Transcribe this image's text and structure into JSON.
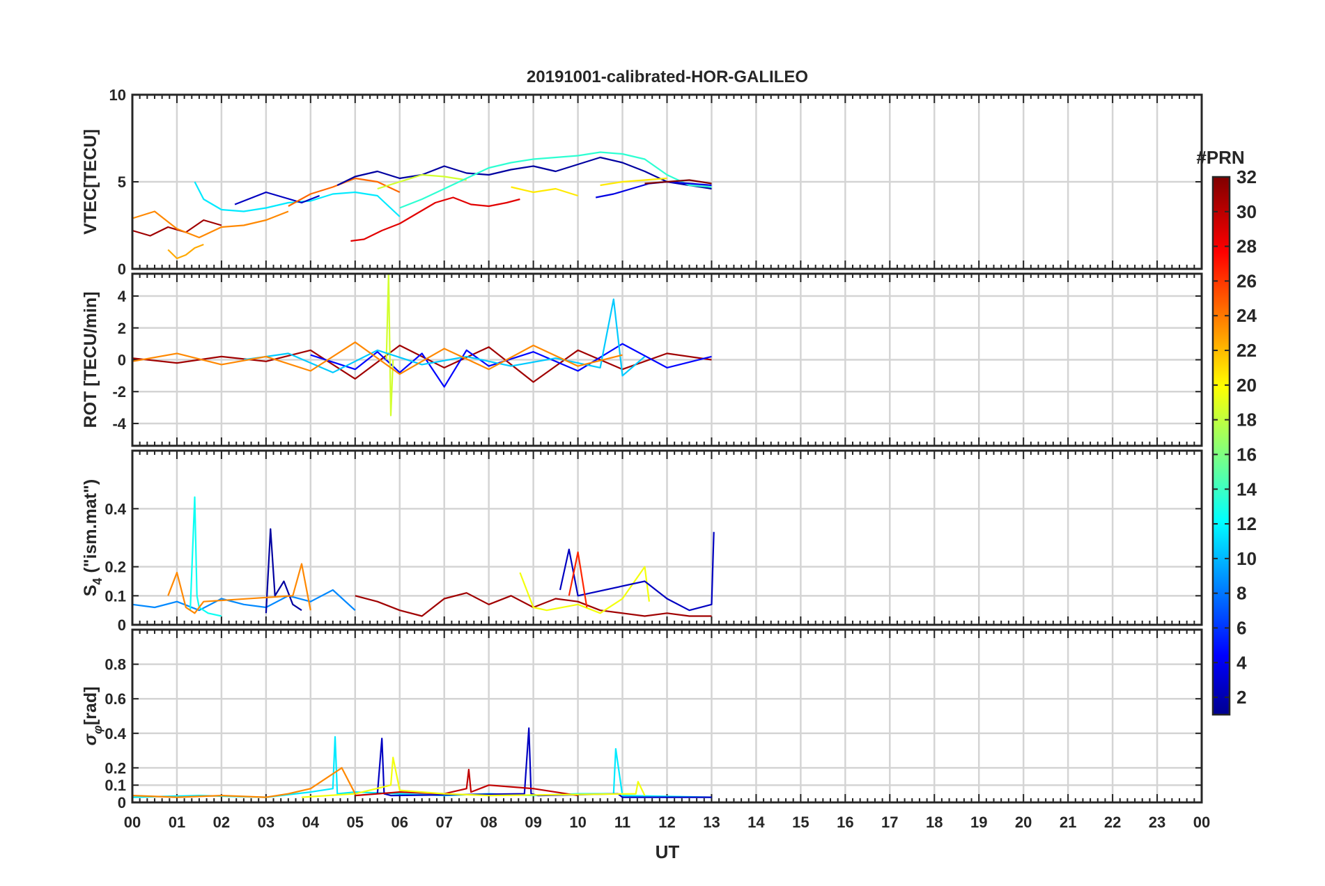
{
  "chart_data": {
    "type": "line",
    "title": "20191001-calibrated-HOR-GALILEO",
    "xlabel": "UT",
    "xlim": [
      0,
      24
    ],
    "x_tick_labels": [
      "00",
      "01",
      "02",
      "03",
      "04",
      "05",
      "06",
      "07",
      "08",
      "09",
      "10",
      "11",
      "12",
      "13",
      "14",
      "15",
      "16",
      "17",
      "18",
      "19",
      "20",
      "21",
      "22",
      "23",
      "00"
    ],
    "data_end_ut": 13.1,
    "colorbar": {
      "label": "#PRN",
      "range": [
        1,
        32
      ],
      "tick_labels": [
        "2",
        "4",
        "6",
        "8",
        "10",
        "12",
        "14",
        "16",
        "18",
        "20",
        "22",
        "24",
        "26",
        "28",
        "30",
        "32"
      ],
      "colormap": "jet",
      "stops": [
        "#00008f",
        "#0000ff",
        "#00ffff",
        "#ffff00",
        "#ff0000",
        "#800000"
      ]
    },
    "panels": [
      {
        "id": "vtec",
        "ylabel": "VTEC[TECU]",
        "ylim": [
          0,
          10
        ],
        "y_ticks": [
          0,
          5,
          10
        ],
        "y_tick_labels": [
          "0",
          "5",
          "10"
        ],
        "series": [
          {
            "prn": 31,
            "label": "PRN 31",
            "x": [
              0.0,
              0.4,
              0.8,
              1.2,
              1.6,
              2.0
            ],
            "y": [
              2.2,
              1.9,
              2.4,
              2.1,
              2.8,
              2.5
            ]
          },
          {
            "prn": 24,
            "label": "PRN 24",
            "x": [
              0.0,
              0.5,
              1.0,
              1.5,
              2.0,
              2.5,
              3.0,
              3.5
            ],
            "y": [
              2.9,
              3.3,
              2.3,
              1.8,
              2.4,
              2.5,
              2.8,
              3.3
            ]
          },
          {
            "prn": 23,
            "label": "PRN 23",
            "x": [
              0.8,
              1.0,
              1.2,
              1.4,
              1.6
            ],
            "y": [
              1.1,
              0.6,
              0.8,
              1.2,
              1.4
            ]
          },
          {
            "prn": 12,
            "label": "PRN 12",
            "x": [
              1.4,
              1.6,
              2.0,
              2.5,
              3.0,
              3.5,
              4.0,
              4.5,
              5.0,
              5.5,
              6.0
            ],
            "y": [
              5.0,
              4.0,
              3.4,
              3.3,
              3.5,
              3.8,
              3.9,
              4.3,
              4.4,
              4.2,
              3.0
            ]
          },
          {
            "prn": 3,
            "label": "PRN 3",
            "x": [
              2.3,
              2.6,
              3.0,
              3.4,
              3.8,
              4.2
            ],
            "y": [
              3.7,
              4.0,
              4.4,
              4.1,
              3.8,
              4.2
            ]
          },
          {
            "prn": 25,
            "label": "PRN 25",
            "x": [
              3.5,
              4.0,
              4.5,
              5.0,
              5.5,
              6.0
            ],
            "y": [
              3.6,
              4.3,
              4.7,
              5.2,
              5.0,
              4.4
            ]
          },
          {
            "prn": 2,
            "label": "PRN 2",
            "x": [
              4.6,
              5.0,
              5.5,
              6.0,
              6.5,
              7.0,
              7.5,
              8.0,
              8.5,
              9.0,
              9.5,
              10.0,
              10.5,
              11.0,
              11.5,
              12.0,
              12.5,
              13.0
            ],
            "y": [
              4.8,
              5.3,
              5.6,
              5.2,
              5.4,
              5.9,
              5.5,
              5.4,
              5.7,
              5.9,
              5.6,
              6.0,
              6.4,
              6.1,
              5.6,
              5.0,
              4.8,
              4.6
            ]
          },
          {
            "prn": 19,
            "label": "PRN 19",
            "x": [
              5.5,
              6.0,
              6.5,
              7.0,
              7.5
            ],
            "y": [
              4.6,
              5.0,
              5.4,
              5.3,
              5.1
            ]
          },
          {
            "prn": 29,
            "label": "PRN 29",
            "x": [
              4.9,
              5.2,
              5.6,
              6.0,
              6.4,
              6.8,
              7.2,
              7.6,
              8.0,
              8.4,
              8.7
            ],
            "y": [
              1.6,
              1.7,
              2.2,
              2.6,
              3.2,
              3.8,
              4.1,
              3.7,
              3.6,
              3.8,
              4.0
            ]
          },
          {
            "prn": 14,
            "label": "PRN 14",
            "x": [
              6.0,
              6.5,
              7.0,
              7.5,
              8.0,
              8.5,
              9.0,
              9.5,
              10.0,
              10.5,
              11.0,
              11.5,
              12.0,
              12.5,
              13.0
            ],
            "y": [
              3.5,
              4.0,
              4.6,
              5.2,
              5.8,
              6.1,
              6.3,
              6.4,
              6.5,
              6.7,
              6.6,
              6.3,
              5.4,
              4.8,
              4.7
            ]
          },
          {
            "prn": 21,
            "label": "PRN 21",
            "x": [
              8.5,
              9.0,
              9.5,
              10.0
            ],
            "y": [
              4.7,
              4.4,
              4.6,
              4.2
            ]
          },
          {
            "prn": 21,
            "label": "PRN 21",
            "x": [
              10.5,
              11.0,
              11.5,
              12.0
            ],
            "y": [
              4.8,
              5.0,
              5.1,
              5.2
            ]
          },
          {
            "prn": 4,
            "label": "PRN 4",
            "x": [
              10.4,
              10.8,
              11.2,
              11.6,
              12.0,
              12.5,
              13.0
            ],
            "y": [
              4.1,
              4.3,
              4.6,
              4.9,
              5.0,
              4.9,
              4.8
            ]
          },
          {
            "prn": 32,
            "label": "PRN 32",
            "x": [
              11.5,
              12.0,
              12.5,
              13.0
            ],
            "y": [
              4.9,
              5.0,
              5.1,
              4.9
            ]
          }
        ]
      },
      {
        "id": "rot",
        "ylabel": "ROT [TECU/min]",
        "ylim": [
          -5.4,
          5.4
        ],
        "y_ticks": [
          -4,
          -2,
          0,
          2,
          4
        ],
        "y_tick_labels": [
          "-4",
          "-2",
          "0",
          "2",
          "4"
        ],
        "series": [
          {
            "prn": 31,
            "label": "PRN 31",
            "x": [
              0.0,
              1.0,
              2.0,
              3.0,
              4.0,
              5.0,
              6.0,
              7.0,
              8.0,
              9.0,
              10.0,
              11.0,
              12.0,
              13.0
            ],
            "y": [
              0.1,
              -0.2,
              0.2,
              -0.1,
              0.6,
              -1.2,
              0.9,
              -0.5,
              0.8,
              -1.4,
              0.6,
              -0.6,
              0.4,
              0.0
            ]
          },
          {
            "prn": 5,
            "label": "PRN 5",
            "x": [
              4.0,
              5.0,
              5.5,
              6.0,
              6.5,
              7.0,
              7.5,
              8.0,
              9.0,
              10.0,
              11.0,
              12.0,
              13.0
            ],
            "y": [
              0.3,
              -0.6,
              0.5,
              -0.8,
              0.4,
              -1.7,
              0.6,
              -0.4,
              0.5,
              -0.7,
              1.0,
              -0.5,
              0.2
            ]
          },
          {
            "prn": 19,
            "label": "PRN 19",
            "x": [
              5.7,
              5.75,
              5.8,
              5.85
            ],
            "y": [
              0.0,
              5.4,
              -3.5,
              0.0
            ]
          },
          {
            "prn": 11,
            "label": "PRN 11",
            "x": [
              2.5,
              3.5,
              4.5,
              5.5,
              6.5,
              7.5,
              8.5,
              9.5,
              10.5,
              10.8,
              11.0,
              11.5
            ],
            "y": [
              0.0,
              0.4,
              -0.8,
              0.6,
              -0.3,
              0.2,
              -0.4,
              0.1,
              -0.5,
              3.8,
              -1.0,
              0.2
            ]
          },
          {
            "prn": 24,
            "label": "PRN 24",
            "x": [
              0.0,
              1.0,
              2.0,
              3.0,
              4.0,
              5.0,
              6.0,
              7.0,
              8.0,
              9.0,
              10.0,
              11.0
            ],
            "y": [
              -0.1,
              0.4,
              -0.3,
              0.2,
              -0.7,
              1.1,
              -0.9,
              0.7,
              -0.6,
              0.9,
              -0.4,
              0.3
            ]
          }
        ]
      },
      {
        "id": "s4",
        "ylabel": "S4 (\"ism.mat\")",
        "ylabel_main": "S",
        "ylabel_sub": "4",
        "ylabel_rest": " (\"ism.mat\")",
        "ylim": [
          0,
          0.6
        ],
        "y_ticks": [
          0,
          0.1,
          0.2,
          0.4
        ],
        "y_tick_labels": [
          "0",
          "0.1",
          "0.2",
          "0.4"
        ],
        "series": [
          {
            "prn": 9,
            "label": "PRN 9",
            "x": [
              0.0,
              0.5,
              1.0,
              1.5,
              2.0,
              2.5,
              3.0,
              3.5,
              4.0,
              4.5,
              5.0
            ],
            "y": [
              0.07,
              0.06,
              0.08,
              0.05,
              0.09,
              0.07,
              0.06,
              0.1,
              0.08,
              0.12,
              0.05
            ]
          },
          {
            "prn": 13,
            "label": "PRN 13",
            "x": [
              1.3,
              1.4,
              1.45,
              1.5,
              1.7,
              2.0
            ],
            "y": [
              0.05,
              0.44,
              0.1,
              0.06,
              0.04,
              0.03
            ]
          },
          {
            "prn": 2,
            "label": "PRN 2",
            "x": [
              3.0,
              3.1,
              3.2,
              3.4,
              3.6,
              3.8
            ],
            "y": [
              0.04,
              0.33,
              0.1,
              0.15,
              0.07,
              0.05
            ]
          },
          {
            "prn": 24,
            "label": "PRN 24",
            "x": [
              0.8,
              1.0,
              1.2,
              1.4,
              1.6,
              3.6,
              3.8,
              4.0
            ],
            "y": [
              0.1,
              0.18,
              0.06,
              0.04,
              0.08,
              0.1,
              0.21,
              0.05
            ]
          },
          {
            "prn": 31,
            "label": "PRN 31",
            "x": [
              5.0,
              5.5,
              6.0,
              6.5,
              7.0,
              7.5,
              8.0,
              8.5,
              9.0,
              9.5,
              10.0,
              10.5,
              11.0,
              11.5,
              12.0,
              12.5,
              13.0
            ],
            "y": [
              0.1,
              0.08,
              0.05,
              0.03,
              0.09,
              0.11,
              0.07,
              0.1,
              0.06,
              0.09,
              0.08,
              0.05,
              0.04,
              0.03,
              0.04,
              0.03,
              0.03
            ]
          },
          {
            "prn": 20,
            "label": "PRN 20",
            "x": [
              8.7,
              9.0,
              9.3,
              10.0,
              10.5,
              11.0,
              11.5,
              11.6
            ],
            "y": [
              0.18,
              0.06,
              0.05,
              0.07,
              0.04,
              0.09,
              0.2,
              0.08
            ]
          },
          {
            "prn": 3,
            "label": "PRN 3",
            "x": [
              9.6,
              9.8,
              10.0,
              11.5,
              12.0,
              12.5,
              13.0,
              13.05
            ],
            "y": [
              0.12,
              0.26,
              0.1,
              0.15,
              0.09,
              0.05,
              0.07,
              0.32
            ]
          },
          {
            "prn": 27,
            "label": "PRN 27",
            "x": [
              9.8,
              10.0,
              10.2
            ],
            "y": [
              0.1,
              0.25,
              0.06
            ]
          }
        ]
      },
      {
        "id": "sigma",
        "ylabel": "σφ[rad]",
        "ylabel_main": "σ",
        "ylabel_sub": "φ",
        "ylabel_rest": "[rad]",
        "ylim": [
          0,
          1.0
        ],
        "y_ticks": [
          0,
          0.1,
          0.2,
          0.4,
          0.6,
          0.8
        ],
        "y_tick_labels": [
          "0",
          "0.1",
          "0.2",
          "0.4",
          "0.6",
          "0.8"
        ],
        "series": [
          {
            "prn": 12,
            "label": "PRN 12",
            "x": [
              0.0,
              1.5,
              3.0,
              4.0,
              4.5,
              4.55,
              4.6,
              5.0,
              6.0,
              7.0,
              8.0,
              9.0,
              10.0,
              10.8,
              10.85,
              11.0,
              13.0
            ],
            "y": [
              0.03,
              0.04,
              0.03,
              0.06,
              0.08,
              0.38,
              0.05,
              0.06,
              0.05,
              0.04,
              0.05,
              0.04,
              0.05,
              0.05,
              0.31,
              0.04,
              0.03
            ]
          },
          {
            "prn": 3,
            "label": "PRN 3",
            "x": [
              5.5,
              5.6,
              5.65,
              5.8,
              8.8,
              8.9,
              8.95,
              9.1,
              10.9,
              11.0,
              13.0
            ],
            "y": [
              0.05,
              0.37,
              0.05,
              0.04,
              0.05,
              0.43,
              0.05,
              0.04,
              0.05,
              0.03,
              0.03
            ]
          },
          {
            "prn": 30,
            "label": "PRN 30",
            "x": [
              5.0,
              6.0,
              7.0,
              7.5,
              7.55,
              7.6,
              8.0,
              9.0,
              10.0
            ],
            "y": [
              0.04,
              0.06,
              0.05,
              0.08,
              0.19,
              0.06,
              0.1,
              0.08,
              0.04
            ]
          },
          {
            "prn": 20,
            "label": "PRN 20",
            "x": [
              3.8,
              5.0,
              5.8,
              5.85,
              6.0,
              7.0,
              8.0,
              11.3,
              11.35,
              11.5
            ],
            "y": [
              0.03,
              0.05,
              0.1,
              0.26,
              0.07,
              0.05,
              0.04,
              0.05,
              0.12,
              0.04
            ]
          },
          {
            "prn": 24,
            "label": "PRN 24",
            "x": [
              0.0,
              1.0,
              2.0,
              3.0,
              3.5,
              4.0,
              4.7,
              5.0
            ],
            "y": [
              0.04,
              0.03,
              0.04,
              0.03,
              0.05,
              0.08,
              0.2,
              0.05
            ]
          }
        ]
      }
    ]
  }
}
